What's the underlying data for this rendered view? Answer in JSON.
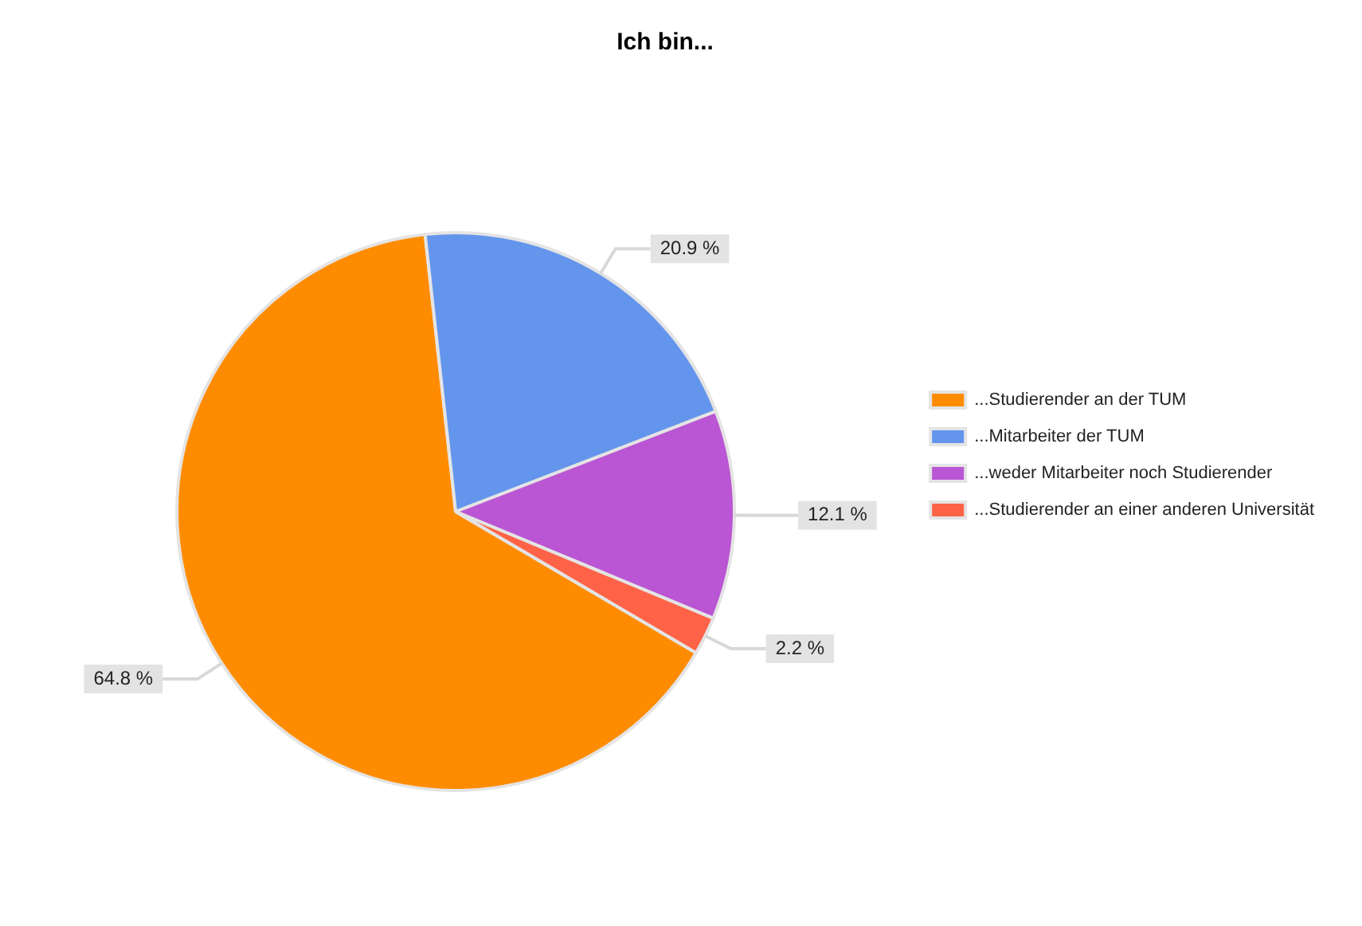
{
  "chart_data": {
    "type": "pie",
    "title": "Ich bin...",
    "categories": [
      "...Studierender an der TUM",
      "...Mitarbeiter der TUM",
      "...weder Mitarbeiter noch Studierender",
      "...Studierender an einer anderen Universität"
    ],
    "values": [
      64.8,
      20.9,
      12.1,
      2.2
    ],
    "colors": [
      "#ff8c00",
      "#6495ed",
      "#ba55d3",
      "#ff6347"
    ],
    "value_labels": [
      "64.8 %",
      "20.9 %",
      "12.1 %",
      "2.2 %"
    ],
    "legend": "right"
  }
}
